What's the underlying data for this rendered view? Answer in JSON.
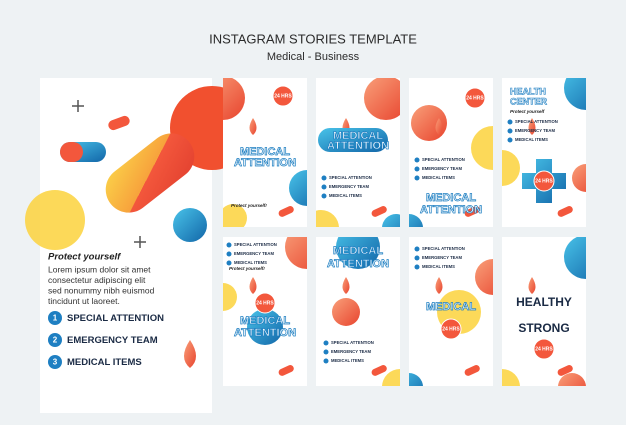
{
  "header": {
    "title": "INSTAGRAM STORIES TEMPLATE",
    "subtitle": "Medical - Business"
  },
  "main_card": {
    "heading": "Protect yourself",
    "body_lines": [
      "Lorem ipsum dolor sit amet",
      "consectetur adipiscing elit",
      "sed nonummy nibh euismod",
      "tincidunt ut laoreet."
    ],
    "items": [
      {
        "number": "1",
        "label": "SPECIAL ATTENTION"
      },
      {
        "number": "2",
        "label": "EMERGENCY TEAM"
      },
      {
        "number": "3",
        "label": "MEDICAL ITEMS"
      }
    ]
  },
  "cards": [
    {
      "badge": "24 HRS",
      "title": "MEDICAL",
      "subtitle": "ATTENTION",
      "tagline": "Protect yourself!"
    },
    {
      "title": "MEDICAL",
      "subtitle": "ATTENTION",
      "items": [
        "SPECIAL ATTENTION",
        "EMERGENCY TEAM",
        "MEDICAL ITEMS"
      ]
    },
    {
      "badge": "24 HRS",
      "title": "MEDICAL",
      "subtitle": "ATTENTION",
      "items": [
        "SPECIAL ATTENTION",
        "EMERGENCY TEAM",
        "MEDICAL ITEMS"
      ]
    },
    {
      "badge": "24 HRS",
      "title": "HEALTH",
      "subtitle": "CENTER",
      "tagline": "Protect yourself",
      "items": [
        "SPECIAL ATTENTION",
        "EMERGENCY TEAM",
        "MEDICAL ITEMS"
      ]
    },
    {
      "badge": "24 HRS",
      "title": "MEDICAL",
      "subtitle": "ATTENTION",
      "tagline": "Protect yourself!",
      "items": [
        "SPECIAL ATTENTION",
        "EMERGENCY TEAM",
        "MEDICAL ITEMS"
      ]
    },
    {
      "title": "MEDICAL",
      "subtitle": "ATTENTION",
      "items": [
        "SPECIAL ATTENTION",
        "EMERGENCY TEAM",
        "MEDICAL ITEMS"
      ]
    },
    {
      "badge": "24 HRS",
      "title": "MEDICAL",
      "items": [
        "SPECIAL ATTENTION",
        "EMERGENCY TEAM",
        "MEDICAL ITEMS"
      ]
    },
    {
      "badge": "24 HRS",
      "title": "HEALTHY",
      "subtitle": "STRONG"
    }
  ]
}
